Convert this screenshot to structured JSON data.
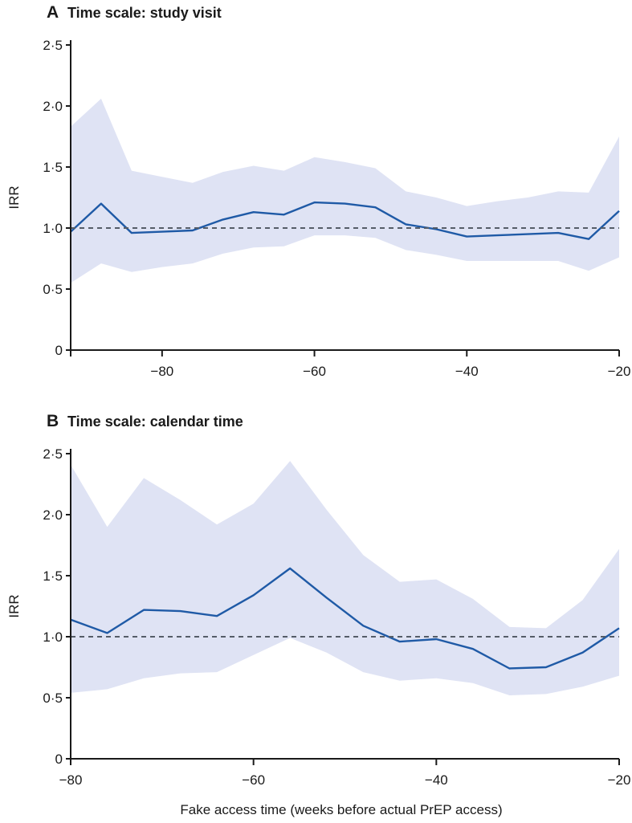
{
  "chart_data": [
    {
      "type": "line",
      "panel_letter": "A",
      "title": "Time scale: study visit",
      "ylabel": "IRR",
      "xlabel": "",
      "xlim": [
        -92,
        -20
      ],
      "ylim": [
        0,
        2.5
      ],
      "x_ticks": [
        -80,
        -60,
        -40,
        -20
      ],
      "x_tick_labels": [
        "−80",
        "−60",
        "−40",
        "−20"
      ],
      "y_ticks": [
        0,
        0.5,
        1.0,
        1.5,
        2.0,
        2.5
      ],
      "y_tick_labels": [
        "0",
        "0·5",
        "1·0",
        "1·5",
        "2·0",
        "2·5"
      ],
      "reference_line": 1.0,
      "x": [
        -92,
        -88,
        -84,
        -80,
        -76,
        -72,
        -68,
        -64,
        -60,
        -56,
        -52,
        -48,
        -44,
        -40,
        -36,
        -32,
        -28,
        -24,
        -20
      ],
      "estimate": [
        0.97,
        1.2,
        0.96,
        0.97,
        0.98,
        1.07,
        1.13,
        1.11,
        1.21,
        1.2,
        1.17,
        1.03,
        0.99,
        0.93,
        0.94,
        0.95,
        0.96,
        0.91,
        1.14
      ],
      "lower": [
        0.55,
        0.71,
        0.64,
        0.68,
        0.71,
        0.79,
        0.84,
        0.85,
        0.94,
        0.94,
        0.92,
        0.82,
        0.78,
        0.73,
        0.73,
        0.73,
        0.73,
        0.65,
        0.76
      ],
      "upper": [
        1.83,
        2.06,
        1.47,
        1.42,
        1.37,
        1.46,
        1.51,
        1.47,
        1.58,
        1.54,
        1.49,
        1.3,
        1.25,
        1.18,
        1.22,
        1.25,
        1.3,
        1.29,
        1.75
      ]
    },
    {
      "type": "line",
      "panel_letter": "B",
      "title": "Time scale: calendar time",
      "ylabel": "IRR",
      "xlabel": "Fake access time (weeks before actual PrEP access)",
      "xlim": [
        -80,
        -20
      ],
      "ylim": [
        0,
        2.5
      ],
      "x_ticks": [
        -80,
        -60,
        -40,
        -20
      ],
      "x_tick_labels": [
        "−80",
        "−60",
        "−40",
        "−20"
      ],
      "y_ticks": [
        0,
        0.5,
        1.0,
        1.5,
        2.0,
        2.5
      ],
      "y_tick_labels": [
        "0",
        "0·5",
        "1·0",
        "1·5",
        "2·0",
        "2·5"
      ],
      "reference_line": 1.0,
      "x": [
        -80,
        -76,
        -72,
        -68,
        -64,
        -60,
        -56,
        -52,
        -48,
        -44,
        -40,
        -36,
        -32,
        -28,
        -24,
        -20
      ],
      "estimate": [
        1.14,
        1.03,
        1.22,
        1.21,
        1.17,
        1.34,
        1.56,
        1.32,
        1.09,
        0.96,
        0.98,
        0.9,
        0.74,
        0.75,
        0.87,
        1.07
      ],
      "lower": [
        0.54,
        0.57,
        0.66,
        0.7,
        0.71,
        0.85,
        0.99,
        0.87,
        0.71,
        0.64,
        0.66,
        0.62,
        0.52,
        0.53,
        0.59,
        0.68
      ],
      "upper": [
        2.41,
        1.9,
        2.3,
        2.12,
        1.92,
        2.09,
        2.44,
        2.04,
        1.67,
        1.45,
        1.47,
        1.31,
        1.08,
        1.07,
        1.3,
        1.72
      ]
    }
  ]
}
